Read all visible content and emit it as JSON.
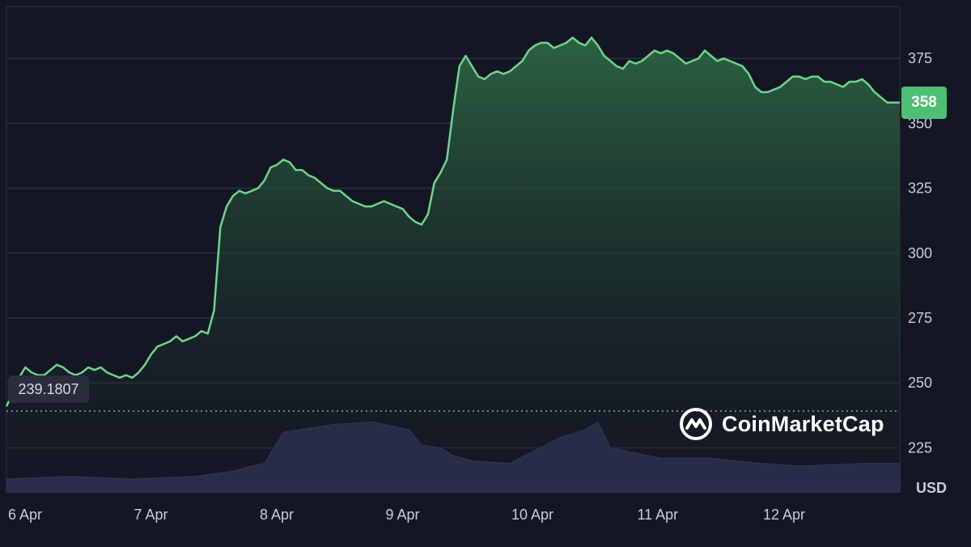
{
  "chart_data": {
    "type": "area",
    "unit_label": "USD",
    "x_tick_labels": [
      "6 Apr",
      "7 Apr",
      "8 Apr",
      "9 Apr",
      "10 Apr",
      "11 Apr",
      "12 Apr"
    ],
    "y_tick_labels": [
      "225",
      "250",
      "275",
      "300",
      "325",
      "350",
      "375"
    ],
    "ylim": [
      208,
      395
    ],
    "current_price_label": "358",
    "reference_line_label": "239.1807",
    "reference_value": 239.1807,
    "grid": true,
    "series": [
      {
        "kind": "price",
        "x_days": [
          0,
          0.05,
          0.1,
          0.15,
          0.2,
          0.25,
          0.3,
          0.35,
          0.4,
          0.45,
          0.5,
          0.55,
          0.6,
          0.65,
          0.7,
          0.75,
          0.8,
          0.85,
          0.9,
          0.95,
          1.0,
          1.05,
          1.1,
          1.15,
          1.2,
          1.25,
          1.3,
          1.35,
          1.4,
          1.45,
          1.5,
          1.55,
          1.6,
          1.65,
          1.7,
          1.75,
          1.8,
          1.85,
          1.9,
          1.95,
          2.0,
          2.05,
          2.1,
          2.15,
          2.2,
          2.25,
          2.3,
          2.35,
          2.4,
          2.45,
          2.5,
          2.55,
          2.6,
          2.65,
          2.7,
          2.75,
          2.8,
          2.85,
          2.9,
          2.95,
          3.0,
          3.05,
          3.1,
          3.15,
          3.2,
          3.25,
          3.3,
          3.35,
          3.4,
          3.45,
          3.5,
          3.55,
          3.6,
          3.65,
          3.7,
          3.75,
          3.8,
          3.85,
          3.9,
          3.95,
          4.0,
          4.05,
          4.1,
          4.15,
          4.2,
          4.25,
          4.3,
          4.35,
          4.4,
          4.45,
          4.5,
          4.55,
          4.6,
          4.65,
          4.7,
          4.75,
          4.8,
          4.85,
          4.9,
          4.95,
          5.0,
          5.05,
          5.1,
          5.15,
          5.2,
          5.25,
          5.3,
          5.35,
          5.4,
          5.45,
          5.5,
          5.55,
          5.6,
          5.65,
          5.7,
          5.75,
          5.8,
          5.85,
          5.9,
          5.95,
          6.0,
          6.05,
          6.1,
          6.15,
          6.2,
          6.25,
          6.3,
          6.35,
          6.4,
          6.45,
          6.5,
          6.55,
          6.6,
          6.65,
          6.7,
          6.75,
          6.8,
          6.85,
          6.9,
          6.95,
          7.0,
          7.05,
          7.1
        ],
        "values": [
          241,
          246,
          252,
          256,
          254,
          253,
          253,
          255,
          257,
          256,
          254,
          253,
          254,
          256,
          255,
          256,
          254,
          253,
          252,
          253,
          252,
          254,
          257,
          261,
          264,
          265,
          266,
          268,
          266,
          267,
          268,
          270,
          269,
          278,
          310,
          318,
          322,
          324,
          323,
          324,
          325,
          328,
          333,
          334,
          336,
          335,
          332,
          332,
          330,
          329,
          327,
          325,
          324,
          324,
          322,
          320,
          319,
          318,
          318,
          319,
          320,
          319,
          318,
          317,
          314,
          312,
          311,
          315,
          327,
          331,
          336,
          355,
          372,
          376,
          372,
          368,
          367,
          369,
          370,
          369,
          370,
          372,
          374,
          378,
          380,
          381,
          381,
          379,
          380,
          381,
          383,
          381,
          380,
          383,
          380,
          376,
          374,
          372,
          371,
          374,
          373,
          374,
          376,
          378,
          377,
          378,
          377,
          375,
          373,
          374,
          375,
          378,
          376,
          374,
          375,
          374,
          373,
          372,
          369,
          364,
          362,
          362,
          363,
          364,
          366,
          368,
          368,
          367,
          368,
          368,
          366,
          366,
          365,
          364,
          366,
          366,
          367,
          365,
          362,
          360,
          358,
          358,
          358
        ]
      },
      {
        "kind": "volume",
        "x_days": [
          0,
          0.5,
          1.0,
          1.5,
          1.8,
          1.95,
          2.05,
          2.2,
          2.6,
          2.9,
          3.0,
          3.2,
          3.3,
          3.45,
          3.55,
          3.7,
          4.0,
          4.4,
          4.6,
          4.7,
          4.8,
          5.2,
          5.6,
          6.0,
          6.3,
          6.8,
          7.1
        ],
        "values": [
          213,
          214,
          213,
          214,
          216,
          218,
          219,
          231,
          234,
          235,
          234,
          232,
          226,
          225,
          222,
          220,
          219,
          229,
          232,
          235,
          225,
          221,
          221,
          219,
          218,
          219,
          219
        ]
      }
    ]
  },
  "brand": {
    "name": "CoinMarketCap",
    "icon": "coinmarketcap-logo-icon"
  },
  "colors": {
    "background": "#141723",
    "line": "#6fd58b",
    "area_top": "#2e6b45",
    "volume": "#2f3152",
    "grid": "#2d3040",
    "badge": "#4fbf73",
    "reference_line": "#9aa0ad"
  }
}
